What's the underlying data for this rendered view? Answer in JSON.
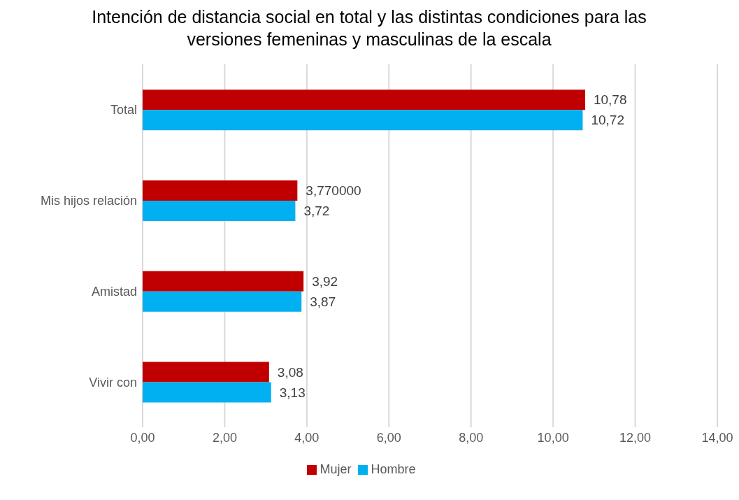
{
  "chart_data": {
    "type": "bar",
    "orientation": "horizontal",
    "title": "Intención de distancia social en total y las distintas condiciones para las versiones femeninas y masculinas de la escala",
    "categories": [
      "Total",
      "Mis hijos relación",
      "Amistad",
      "Vivir con"
    ],
    "series": [
      {
        "name": "Mujer",
        "color": "#c00000",
        "values": [
          10.78,
          3.77,
          3.92,
          3.08
        ],
        "value_labels": [
          "10,78",
          "3,770000",
          "3,92",
          "3,08"
        ]
      },
      {
        "name": "Hombre",
        "color": "#00b0f0",
        "values": [
          10.72,
          3.72,
          3.87,
          3.13
        ],
        "value_labels": [
          "10,72",
          "3,72",
          "3,87",
          "3,13"
        ]
      }
    ],
    "xlim": [
      0,
      14
    ],
    "xticks": [
      {
        "value": 0,
        "label": "0,00"
      },
      {
        "value": 2,
        "label": "2,00"
      },
      {
        "value": 4,
        "label": "4,00"
      },
      {
        "value": 6,
        "label": "6,00"
      },
      {
        "value": 8,
        "label": "8,00"
      },
      {
        "value": 10,
        "label": "10,00"
      },
      {
        "value": 12,
        "label": "12,00"
      },
      {
        "value": 14,
        "label": "14,00"
      }
    ],
    "grid": "x",
    "legend": "bottom"
  }
}
